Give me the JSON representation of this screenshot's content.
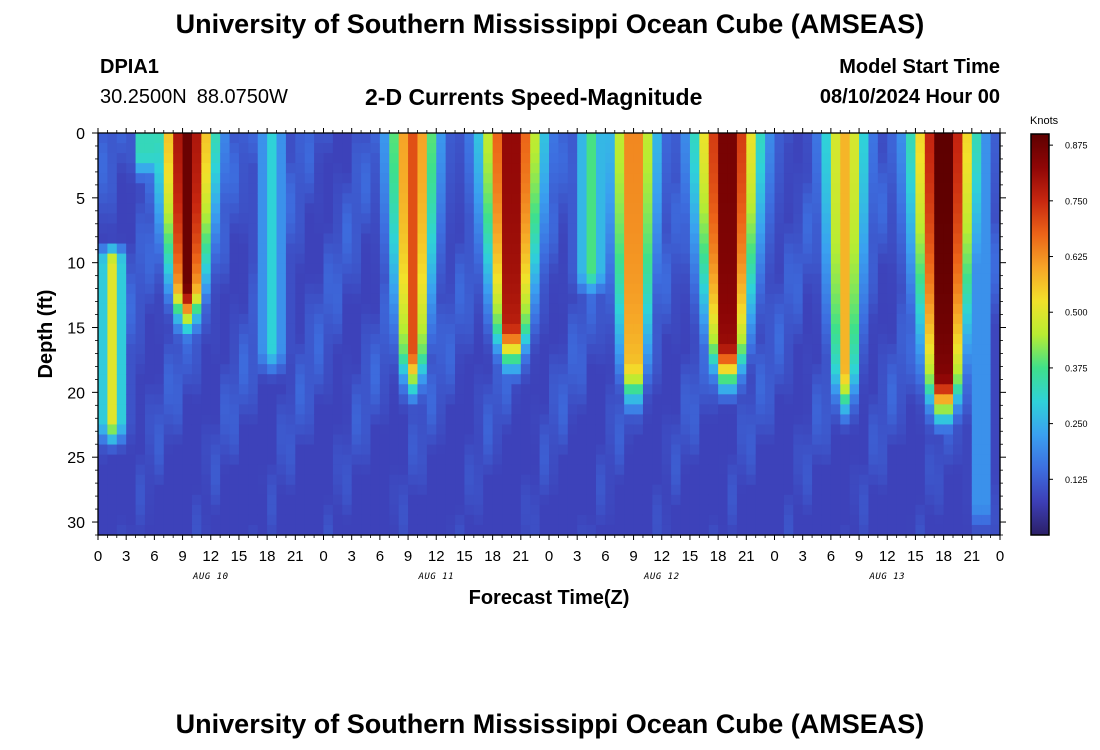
{
  "header": {
    "title": "University of Southern Mississippi Ocean Cube (AMSEAS)",
    "station_id": "DPIA1",
    "lat": "30.2500N",
    "lon": "88.0750W",
    "subtitle": "2-D Currents Speed-Magnitude",
    "start_label": "Model Start Time",
    "start_value": "08/10/2024 Hour 00"
  },
  "footer": {
    "title": "University of Southern Mississippi Ocean Cube (AMSEAS)"
  },
  "chart_data": {
    "type": "heatmap",
    "xlabel": "Forecast Time(Z)",
    "ylabel": "Depth (ft)",
    "xlim": [
      0,
      96
    ],
    "ylim": [
      0,
      31
    ],
    "x_tick_values": [
      0,
      3,
      6,
      9,
      12,
      15,
      18,
      21,
      24,
      27,
      30,
      33,
      36,
      39,
      42,
      45,
      48,
      51,
      54,
      57,
      60,
      63,
      66,
      69,
      72,
      75,
      78,
      81,
      84,
      87,
      90,
      93,
      96
    ],
    "x_tick_labels": [
      "0",
      "3",
      "6",
      "9",
      "12",
      "15",
      "18",
      "21",
      "0",
      "3",
      "6",
      "9",
      "12",
      "15",
      "18",
      "21",
      "0",
      "3",
      "6",
      "9",
      "12",
      "15",
      "18",
      "21",
      "0",
      "3",
      "6",
      "9",
      "12",
      "15",
      "18",
      "21",
      "0"
    ],
    "y_tick_values": [
      0,
      5,
      10,
      15,
      20,
      25,
      30
    ],
    "y_tick_labels": [
      "0",
      "5",
      "10",
      "15",
      "20",
      "25",
      "30"
    ],
    "day_labels": [
      {
        "x": 12,
        "label": "AUG 10"
      },
      {
        "x": 36,
        "label": "AUG 11"
      },
      {
        "x": 60,
        "label": "AUG 12"
      },
      {
        "x": 84,
        "label": "AUG 13"
      }
    ],
    "colorbar": {
      "title": "Knots",
      "min": 0.0,
      "max": 0.9,
      "ticks": [
        0.125,
        0.25,
        0.375,
        0.5,
        0.625,
        0.75,
        0.875
      ],
      "tick_labels": [
        "0.125",
        "0.250",
        "0.375",
        "0.500",
        "0.625",
        "0.750",
        "0.875"
      ],
      "colormap": [
        "#2b1f66",
        "#3d3fb7",
        "#3d6fe0",
        "#3aa0f0",
        "#2fd2d8",
        "#3fe08a",
        "#b8ec32",
        "#f2e12a",
        "#f6a527",
        "#ec6418",
        "#c72710",
        "#8f0606",
        "#5e0000"
      ]
    },
    "speed_events": [
      {
        "t": 9.5,
        "amp": 0.8,
        "width": 2.8,
        "bottom": 14.5
      },
      {
        "t": 33.5,
        "amp": 0.62,
        "width": 2.4,
        "bottom": 19.5
      },
      {
        "t": 44.0,
        "amp": 0.76,
        "width": 3.0,
        "bottom": 17.5
      },
      {
        "t": 57.0,
        "amp": 0.58,
        "width": 2.3,
        "bottom": 20.5
      },
      {
        "t": 67.0,
        "amp": 0.8,
        "width": 3.2,
        "bottom": 19.0
      },
      {
        "t": 79.5,
        "amp": 0.5,
        "width": 2.2,
        "bottom": 21.0
      },
      {
        "t": 90.0,
        "amp": 0.84,
        "width": 3.2,
        "bottom": 21.5
      }
    ],
    "minor_events": [
      {
        "t": 1.5,
        "amp": 0.42,
        "width": 1.2,
        "top": 9.0,
        "bottom": 23.5
      },
      {
        "t": 5.0,
        "amp": 0.32,
        "width": 1.0,
        "top": 0.0,
        "bottom": 3.0
      },
      {
        "t": 18.5,
        "amp": 0.22,
        "width": 1.3,
        "top": 0.0,
        "bottom": 18.0
      },
      {
        "t": 52.5,
        "amp": 0.3,
        "width": 1.4,
        "top": 0.0,
        "bottom": 12.0
      },
      {
        "t": 94.0,
        "amp": 0.18,
        "width": 0.8,
        "top": 0.0,
        "bottom": 30.0
      }
    ]
  }
}
